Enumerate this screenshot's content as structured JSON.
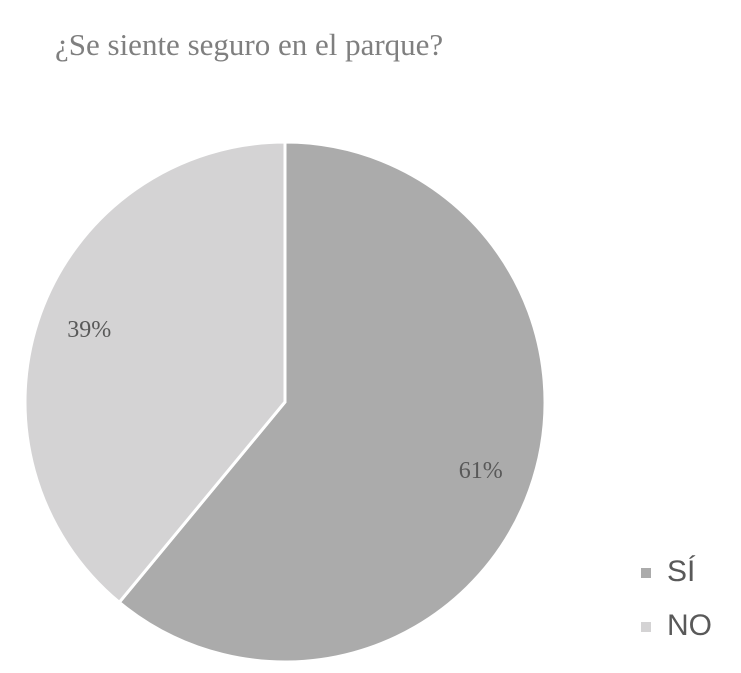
{
  "chart_data": {
    "type": "pie",
    "title": "¿Se siente seguro en el parque?",
    "categories": [
      "SÍ",
      "NO"
    ],
    "values": [
      61,
      39
    ],
    "value_labels": [
      "61%",
      "39%"
    ],
    "colors": [
      "#ababab",
      "#d4d3d4"
    ],
    "legend": "right"
  }
}
